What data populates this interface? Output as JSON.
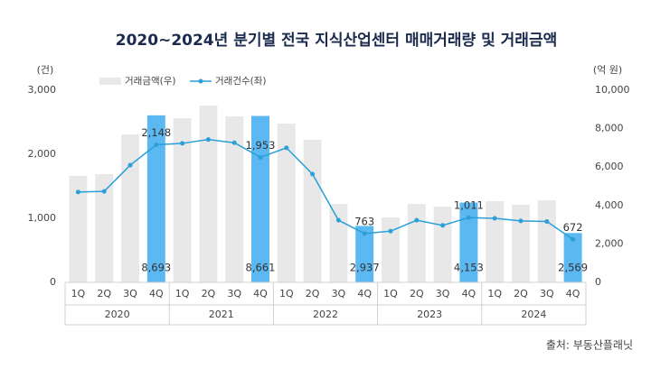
{
  "chart_data": {
    "type": "bar-line",
    "title": "2020~2024년 분기별 전국 지식산업센터 매매거래량 및 거래금액",
    "y_label": "(건)",
    "y2_label": "(억 원)",
    "source": "출처: 부동산플래닛",
    "categories": [
      "1Q",
      "2Q",
      "3Q",
      "4Q",
      "1Q",
      "2Q",
      "3Q",
      "4Q",
      "1Q",
      "2Q",
      "3Q",
      "4Q",
      "1Q",
      "2Q",
      "3Q",
      "4Q",
      "1Q",
      "2Q",
      "3Q",
      "4Q"
    ],
    "years": [
      "2020",
      "2021",
      "2022",
      "2023",
      "2024"
    ],
    "ylim": [
      0,
      3000
    ],
    "yticks": [
      0,
      {
        "value": 1000,
        "label": "1,000"
      },
      {
        "value": 2000,
        "label": "2,000"
      },
      {
        "value": 3000,
        "label": "3,000"
      }
    ],
    "y2lim": [
      0,
      10000
    ],
    "y2ticks": [
      0,
      {
        "value": 2000,
        "label": "2,000"
      },
      {
        "value": 4000,
        "label": "4,000"
      },
      {
        "value": 6000,
        "label": "6,000"
      },
      {
        "value": 8000,
        "label": "8,000"
      },
      {
        "value": 10000,
        "label": "10,000"
      }
    ],
    "series": [
      {
        "name": "거래금액(우)",
        "type": "bar",
        "axis": "y2",
        "color": "#e8e8e8",
        "colors": [
          "#e8e8e8",
          "#e8e8e8",
          "#e8e8e8",
          "#5bb8f0",
          "#e8e8e8",
          "#e8e8e8",
          "#e8e8e8",
          "#5bb8f0",
          "#e8e8e8",
          "#e8e8e8",
          "#e8e8e8",
          "#5bb8f0",
          "#e8e8e8",
          "#e8e8e8",
          "#e8e8e8",
          "#5bb8f0",
          "#e8e8e8",
          "#e8e8e8",
          "#e8e8e8",
          "#5bb8f0"
        ],
        "values": [
          5540,
          5630,
          7700,
          8693,
          8540,
          9200,
          8640,
          8661,
          8260,
          7420,
          4080,
          2937,
          3380,
          4080,
          3940,
          4153,
          4230,
          4040,
          4270,
          2569
        ],
        "value_labels": [
          null,
          null,
          null,
          "8,693",
          null,
          null,
          null,
          "8,661",
          null,
          null,
          null,
          "2,937",
          null,
          null,
          null,
          "4,153",
          null,
          null,
          null,
          "2,569"
        ]
      },
      {
        "name": "거래건수(좌)",
        "type": "line",
        "axis": "y",
        "color": "#2a9fd8",
        "values": [
          1410,
          1420,
          1830,
          2148,
          2170,
          2230,
          2180,
          1953,
          2100,
          1690,
          970,
          763,
          800,
          970,
          890,
          1011,
          1000,
          960,
          950,
          672
        ],
        "value_labels": [
          null,
          null,
          null,
          "2,148",
          null,
          null,
          null,
          "1,953",
          null,
          null,
          null,
          "763",
          null,
          null,
          null,
          "1,011",
          null,
          null,
          null,
          "672"
        ]
      }
    ]
  }
}
